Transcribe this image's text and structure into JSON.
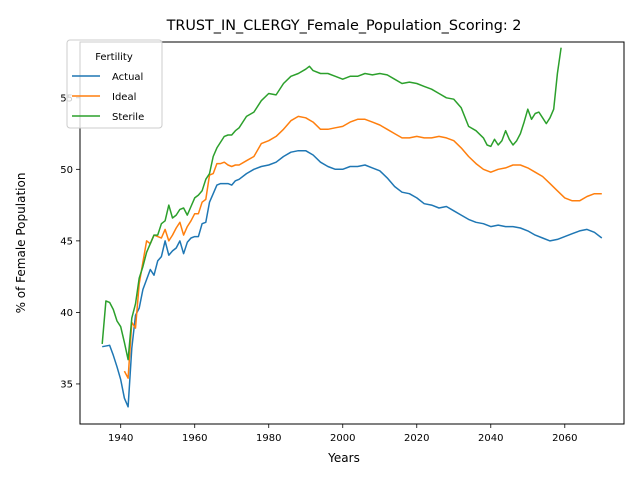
{
  "colors": {
    "actual": "#1f77b4",
    "ideal": "#ff7f0e",
    "sterile": "#2ca02c"
  },
  "chart_data": {
    "type": "line",
    "title": "TRUST_IN_CLERGY_Female_Population_Scoring: 2",
    "xlabel": "Years",
    "ylabel": "% of Female Population",
    "xlim": [
      1929,
      2076
    ],
    "ylim": [
      32.2,
      58.9
    ],
    "xticks": [
      1940,
      1960,
      1980,
      2000,
      2020,
      2040,
      2060
    ],
    "yticks": [
      35,
      40,
      45,
      50,
      55
    ],
    "grid": false,
    "legend": {
      "title": "Fertility",
      "placement": "top-left"
    },
    "series": [
      {
        "name": "Actual",
        "color": "#1f77b4",
        "x": [
          1935,
          1937,
          1938,
          1939,
          1940,
          1941,
          1942,
          1943,
          1944,
          1945,
          1946,
          1947,
          1948,
          1949,
          1950,
          1951,
          1952,
          1953,
          1954,
          1955,
          1956,
          1957,
          1958,
          1959,
          1960,
          1961,
          1962,
          1963,
          1964,
          1965,
          1966,
          1967,
          1968,
          1969,
          1970,
          1971,
          1972,
          1974,
          1976,
          1978,
          1980,
          1982,
          1984,
          1986,
          1988,
          1990,
          1992,
          1994,
          1996,
          1998,
          2000,
          2002,
          2004,
          2006,
          2008,
          2010,
          2012,
          2014,
          2016,
          2018,
          2020,
          2022,
          2024,
          2026,
          2028,
          2030,
          2032,
          2034,
          2036,
          2038,
          2040,
          2042,
          2044,
          2046,
          2048,
          2050,
          2052,
          2054,
          2056,
          2058,
          2060,
          2062,
          2064,
          2066,
          2068,
          2070
        ],
        "y": [
          37.6,
          37.7,
          37.0,
          36.2,
          35.3,
          34.0,
          33.4,
          37.5,
          39.8,
          40.3,
          41.6,
          42.3,
          43.0,
          42.6,
          43.6,
          43.9,
          45.0,
          44.0,
          44.3,
          44.5,
          45.0,
          44.1,
          44.9,
          45.2,
          45.3,
          45.3,
          46.2,
          46.3,
          47.7,
          48.3,
          48.9,
          49.0,
          49.0,
          49.0,
          48.9,
          49.2,
          49.3,
          49.7,
          50.0,
          50.2,
          50.3,
          50.5,
          50.9,
          51.2,
          51.3,
          51.3,
          51.0,
          50.5,
          50.2,
          50.0,
          50.0,
          50.2,
          50.2,
          50.3,
          50.1,
          49.9,
          49.4,
          48.8,
          48.4,
          48.3,
          48.0,
          47.6,
          47.5,
          47.3,
          47.4,
          47.1,
          46.8,
          46.5,
          46.3,
          46.2,
          46.0,
          46.1,
          46.0,
          46.0,
          45.9,
          45.7,
          45.4,
          45.2,
          45.0,
          45.1,
          45.3,
          45.5,
          45.7,
          45.8,
          45.6,
          45.2
        ]
      },
      {
        "name": "Ideal",
        "color": "#ff7f0e",
        "x": [
          1941,
          1942,
          1943,
          1944,
          1945,
          1946,
          1947,
          1948,
          1949,
          1950,
          1951,
          1952,
          1953,
          1954,
          1955,
          1956,
          1957,
          1958,
          1959,
          1960,
          1961,
          1962,
          1963,
          1964,
          1965,
          1966,
          1967,
          1968,
          1969,
          1970,
          1971,
          1972,
          1974,
          1976,
          1978,
          1980,
          1982,
          1984,
          1986,
          1988,
          1990,
          1992,
          1994,
          1996,
          1998,
          2000,
          2002,
          2004,
          2006,
          2008,
          2010,
          2012,
          2014,
          2016,
          2018,
          2020,
          2022,
          2024,
          2026,
          2028,
          2030,
          2032,
          2034,
          2036,
          2038,
          2040,
          2042,
          2044,
          2046,
          2048,
          2050,
          2052,
          2054,
          2056,
          2058,
          2060,
          2062,
          2064,
          2066,
          2068,
          2070
        ],
        "y": [
          35.9,
          35.4,
          39.3,
          38.9,
          42.0,
          43.5,
          45.0,
          44.8,
          45.4,
          45.3,
          45.2,
          45.8,
          45.0,
          45.4,
          45.9,
          46.3,
          45.4,
          46.0,
          46.4,
          46.9,
          46.9,
          47.7,
          47.9,
          49.6,
          49.7,
          50.4,
          50.4,
          50.5,
          50.3,
          50.2,
          50.3,
          50.3,
          50.6,
          50.9,
          51.8,
          52.0,
          52.3,
          52.8,
          53.4,
          53.7,
          53.6,
          53.3,
          52.8,
          52.8,
          52.9,
          53.0,
          53.3,
          53.5,
          53.5,
          53.3,
          53.1,
          52.8,
          52.5,
          52.2,
          52.2,
          52.3,
          52.2,
          52.2,
          52.3,
          52.2,
          52.0,
          51.5,
          50.9,
          50.4,
          50.0,
          49.8,
          50.0,
          50.1,
          50.3,
          50.3,
          50.1,
          49.8,
          49.5,
          49.0,
          48.5,
          48.0,
          47.8,
          47.8,
          48.1,
          48.3,
          48.3
        ]
      },
      {
        "name": "Sterile",
        "color": "#2ca02c",
        "x": [
          1935,
          1936,
          1937,
          1938,
          1939,
          1940,
          1941,
          1942,
          1943,
          1944,
          1945,
          1946,
          1947,
          1948,
          1949,
          1950,
          1951,
          1952,
          1953,
          1954,
          1955,
          1956,
          1957,
          1958,
          1959,
          1960,
          1961,
          1962,
          1963,
          1964,
          1965,
          1966,
          1967,
          1968,
          1969,
          1970,
          1971,
          1972,
          1974,
          1976,
          1978,
          1980,
          1982,
          1984,
          1986,
          1988,
          1990,
          1991,
          1992,
          1994,
          1996,
          1998,
          2000,
          2002,
          2004,
          2006,
          2008,
          2010,
          2012,
          2014,
          2016,
          2018,
          2020,
          2022,
          2024,
          2026,
          2028,
          2030,
          2032,
          2034,
          2036,
          2038,
          2039,
          2040,
          2041,
          2042,
          2043,
          2044,
          2045,
          2046,
          2047,
          2048,
          2049,
          2050,
          2051,
          2052,
          2053,
          2054,
          2055,
          2056,
          2057,
          2058,
          2059
        ],
        "y": [
          37.8,
          40.8,
          40.7,
          40.2,
          39.4,
          39.0,
          37.9,
          36.7,
          39.6,
          40.6,
          42.4,
          43.2,
          44.2,
          44.8,
          45.4,
          45.4,
          46.2,
          46.4,
          47.5,
          46.6,
          46.8,
          47.2,
          47.3,
          46.8,
          47.4,
          48.0,
          48.2,
          48.5,
          49.3,
          49.7,
          50.9,
          51.5,
          51.9,
          52.3,
          52.4,
          52.4,
          52.7,
          52.9,
          53.7,
          54.0,
          54.8,
          55.3,
          55.2,
          56.0,
          56.5,
          56.7,
          57.0,
          57.2,
          56.9,
          56.7,
          56.7,
          56.5,
          56.3,
          56.5,
          56.5,
          56.7,
          56.6,
          56.7,
          56.6,
          56.3,
          56.0,
          56.1,
          56.0,
          55.8,
          55.6,
          55.3,
          55.0,
          54.9,
          54.3,
          53.0,
          52.7,
          52.2,
          51.7,
          51.6,
          52.1,
          51.7,
          52.0,
          52.7,
          52.1,
          51.7,
          52.0,
          52.5,
          53.3,
          54.2,
          53.5,
          53.9,
          54.0,
          53.6,
          53.2,
          53.6,
          54.2,
          56.7,
          58.5
        ]
      }
    ]
  }
}
